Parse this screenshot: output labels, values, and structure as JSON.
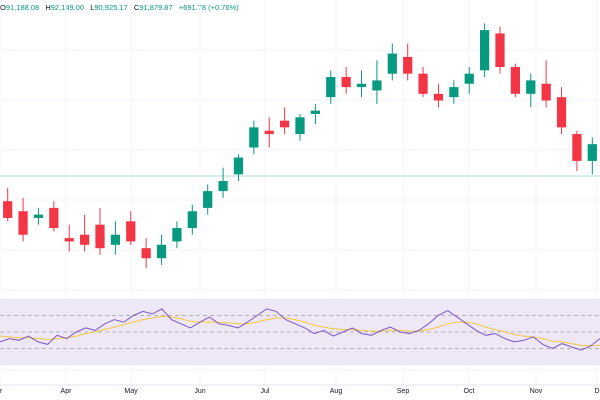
{
  "ohlc_readout": {
    "open_label": "O",
    "open": "91,188.08",
    "high_label": "H",
    "high": "92,149.00",
    "low_label": "L",
    "low": "90,925.17",
    "close_label": "C",
    "close": "91,879.87",
    "change": "+691.78 (+0.76%)"
  },
  "colors": {
    "up": "#089981",
    "down": "#f23645",
    "rsi_line": "#7e57c2",
    "rsi_ma": "#f5c842",
    "rsi_band": "#ede7f6",
    "grid": "#f0f3fa",
    "baseline": "#b2dfdb"
  },
  "chart_data": [
    {
      "type": "candlestick",
      "x_tick_labels": [
        "r",
        "Apr",
        "May",
        "Jun",
        "Jul",
        "Aug",
        "Sep",
        "Oct",
        "Nov",
        "D"
      ],
      "ylim": [
        50000,
        115000
      ],
      "grid": true,
      "series": [
        {
          "x": 0,
          "open": 72000,
          "high": 76000,
          "low": 66000,
          "close": 67000
        },
        {
          "x": 1,
          "open": 69000,
          "high": 73000,
          "low": 60000,
          "close": 62000
        },
        {
          "x": 2,
          "open": 67000,
          "high": 70000,
          "low": 65000,
          "close": 68000
        },
        {
          "x": 3,
          "open": 70000,
          "high": 72000,
          "low": 63000,
          "close": 64000
        },
        {
          "x": 4,
          "open": 61000,
          "high": 65000,
          "low": 57000,
          "close": 60000
        },
        {
          "x": 5,
          "open": 62000,
          "high": 68000,
          "low": 57000,
          "close": 59000
        },
        {
          "x": 6,
          "open": 65000,
          "high": 70000,
          "low": 56000,
          "close": 58000
        },
        {
          "x": 7,
          "open": 59000,
          "high": 66000,
          "low": 56000,
          "close": 62000
        },
        {
          "x": 8,
          "open": 66000,
          "high": 69000,
          "low": 59000,
          "close": 60000
        },
        {
          "x": 9,
          "open": 58000,
          "high": 61000,
          "low": 52000,
          "close": 55000
        },
        {
          "x": 10,
          "open": 55000,
          "high": 62000,
          "low": 53000,
          "close": 59000
        },
        {
          "x": 11,
          "open": 60000,
          "high": 66000,
          "low": 58000,
          "close": 64000
        },
        {
          "x": 12,
          "open": 64000,
          "high": 71000,
          "low": 62000,
          "close": 69000
        },
        {
          "x": 13,
          "open": 70000,
          "high": 77000,
          "low": 68000,
          "close": 75000
        },
        {
          "x": 14,
          "open": 75000,
          "high": 82000,
          "low": 73000,
          "close": 78000
        },
        {
          "x": 15,
          "open": 80000,
          "high": 86000,
          "low": 78000,
          "close": 85000
        },
        {
          "x": 16,
          "open": 88000,
          "high": 96000,
          "low": 86000,
          "close": 94000
        },
        {
          "x": 17,
          "open": 93000,
          "high": 97000,
          "low": 88000,
          "close": 92000
        },
        {
          "x": 18,
          "open": 96000,
          "high": 100000,
          "low": 92000,
          "close": 94000
        },
        {
          "x": 19,
          "open": 92000,
          "high": 98000,
          "low": 90000,
          "close": 97000
        },
        {
          "x": 20,
          "open": 98000,
          "high": 101000,
          "low": 95000,
          "close": 99000
        },
        {
          "x": 21,
          "open": 103000,
          "high": 111000,
          "low": 101000,
          "close": 109000
        },
        {
          "x": 22,
          "open": 109000,
          "high": 112000,
          "low": 104000,
          "close": 106000
        },
        {
          "x": 23,
          "open": 106000,
          "high": 111000,
          "low": 103000,
          "close": 107000
        },
        {
          "x": 24,
          "open": 105000,
          "high": 114000,
          "low": 101000,
          "close": 108000
        },
        {
          "x": 25,
          "open": 110000,
          "high": 119000,
          "low": 108000,
          "close": 116000
        },
        {
          "x": 26,
          "open": 115000,
          "high": 119000,
          "low": 108000,
          "close": 110000
        },
        {
          "x": 27,
          "open": 110000,
          "high": 112000,
          "low": 103000,
          "close": 104000
        },
        {
          "x": 28,
          "open": 104000,
          "high": 107000,
          "low": 100000,
          "close": 102000
        },
        {
          "x": 29,
          "open": 103000,
          "high": 108000,
          "low": 101000,
          "close": 106000
        },
        {
          "x": 30,
          "open": 107000,
          "high": 112000,
          "low": 104000,
          "close": 110000
        },
        {
          "x": 31,
          "open": 111000,
          "high": 125000,
          "low": 109000,
          "close": 123000
        },
        {
          "x": 32,
          "open": 122000,
          "high": 124000,
          "low": 110000,
          "close": 112000
        },
        {
          "x": 33,
          "open": 112000,
          "high": 113000,
          "low": 103000,
          "close": 104000
        },
        {
          "x": 34,
          "open": 104000,
          "high": 110000,
          "low": 100000,
          "close": 108000
        },
        {
          "x": 35,
          "open": 107000,
          "high": 114000,
          "low": 100000,
          "close": 102000
        },
        {
          "x": 36,
          "open": 103000,
          "high": 106000,
          "low": 92000,
          "close": 94000
        },
        {
          "x": 37,
          "open": 92000,
          "high": 93000,
          "low": 81000,
          "close": 84000
        },
        {
          "x": 38,
          "open": 84000,
          "high": 91000,
          "low": 80000,
          "close": 89000
        }
      ]
    },
    {
      "type": "line",
      "series": [
        {
          "values": [
            38,
            42,
            40,
            45,
            38,
            35,
            46,
            42,
            50,
            55,
            52,
            60,
            65,
            62,
            70,
            75,
            72,
            78,
            65,
            60,
            55,
            62,
            68,
            60,
            58,
            55,
            62,
            70,
            78,
            75,
            65,
            60,
            55,
            48,
            52,
            45,
            50,
            55,
            48,
            46,
            52,
            56,
            50,
            48,
            52,
            60,
            70,
            76,
            68,
            60,
            52,
            46,
            48,
            42,
            38,
            40,
            44,
            35,
            30,
            36,
            32,
            28,
            33,
            42
          ]
        },
        {
          "values": [
            45,
            44,
            43,
            43,
            42,
            41,
            42,
            43,
            45,
            48,
            50,
            53,
            56,
            59,
            62,
            65,
            67,
            69,
            68,
            66,
            63,
            62,
            62,
            62,
            61,
            60,
            60,
            62,
            65,
            67,
            67,
            65,
            62,
            58,
            56,
            54,
            53,
            53,
            52,
            51,
            51,
            52,
            52,
            51,
            51,
            53,
            56,
            60,
            62,
            62,
            60,
            56,
            53,
            50,
            47,
            45,
            44,
            42,
            39,
            38,
            36,
            34,
            33,
            34
          ]
        }
      ],
      "ylim": [
        10,
        90
      ],
      "guides": [
        70,
        50,
        30
      ]
    }
  ]
}
